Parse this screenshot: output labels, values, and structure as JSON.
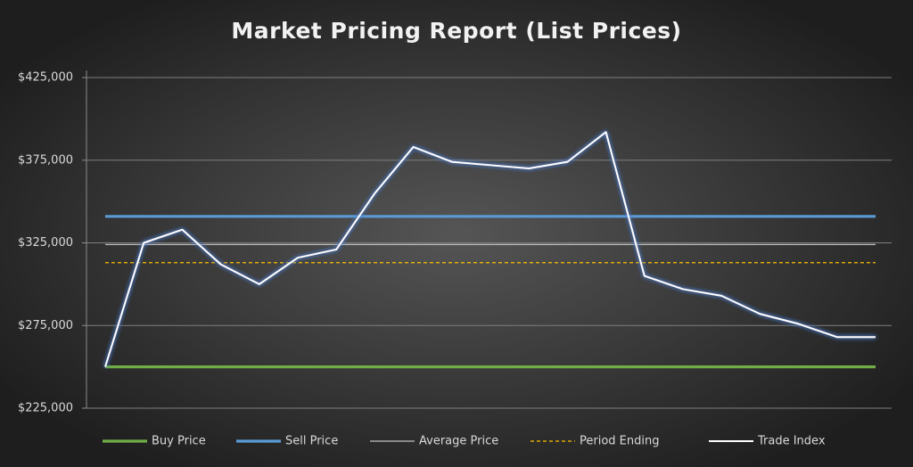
{
  "chart_data": {
    "type": "line",
    "title": "Market Pricing Report (List Prices)",
    "categories": [
      null,
      null,
      null,
      null,
      null,
      null,
      null,
      null,
      null,
      null,
      null,
      null,
      null,
      null,
      null,
      null,
      null,
      null,
      null,
      null,
      null
    ],
    "ylim": [
      225000,
      425000
    ],
    "yticks": [
      {
        "value": 225000,
        "label": "$225,000"
      },
      {
        "value": 275000,
        "label": "$275,000"
      },
      {
        "value": 325000,
        "label": "$325,000"
      },
      {
        "value": 375000,
        "label": "$375,000"
      },
      {
        "value": 425000,
        "label": "$425,000"
      }
    ],
    "grid": true,
    "legend": "bottom",
    "series": [
      {
        "name": "Buy Price",
        "color": "#70ad47",
        "values": [
          250000,
          250000,
          250000,
          250000,
          250000,
          250000,
          250000,
          250000,
          250000,
          250000,
          250000,
          250000,
          250000,
          250000,
          250000,
          250000,
          250000,
          250000,
          250000,
          250000,
          250000
        ]
      },
      {
        "name": "Sell Price",
        "color": "#5b9bd5",
        "values": [
          341000,
          341000,
          341000,
          341000,
          341000,
          341000,
          341000,
          341000,
          341000,
          341000,
          341000,
          341000,
          341000,
          341000,
          341000,
          341000,
          341000,
          341000,
          341000,
          341000,
          341000
        ]
      },
      {
        "name": "Average Price",
        "color": "#bfbfbf",
        "values": [
          324000,
          324000,
          324000,
          324000,
          324000,
          324000,
          324000,
          324000,
          324000,
          324000,
          324000,
          324000,
          324000,
          324000,
          324000,
          324000,
          324000,
          324000,
          324000,
          324000,
          324000
        ]
      },
      {
        "name": "Period Ending",
        "color": "#ffc000",
        "dashed": true,
        "values": [
          313000,
          313000,
          313000,
          313000,
          313000,
          313000,
          313000,
          313000,
          313000,
          313000,
          313000,
          313000,
          313000,
          313000,
          313000,
          313000,
          313000,
          313000,
          313000,
          313000,
          313000
        ]
      },
      {
        "name": "Trade Index",
        "color": "#ffffff",
        "glow": true,
        "values": [
          250000,
          325000,
          333000,
          312000,
          300000,
          316000,
          321000,
          355000,
          383000,
          374000,
          372000,
          370000,
          374000,
          392000,
          305000,
          297000,
          293000,
          282000,
          276000,
          268000,
          268000
        ]
      }
    ]
  }
}
